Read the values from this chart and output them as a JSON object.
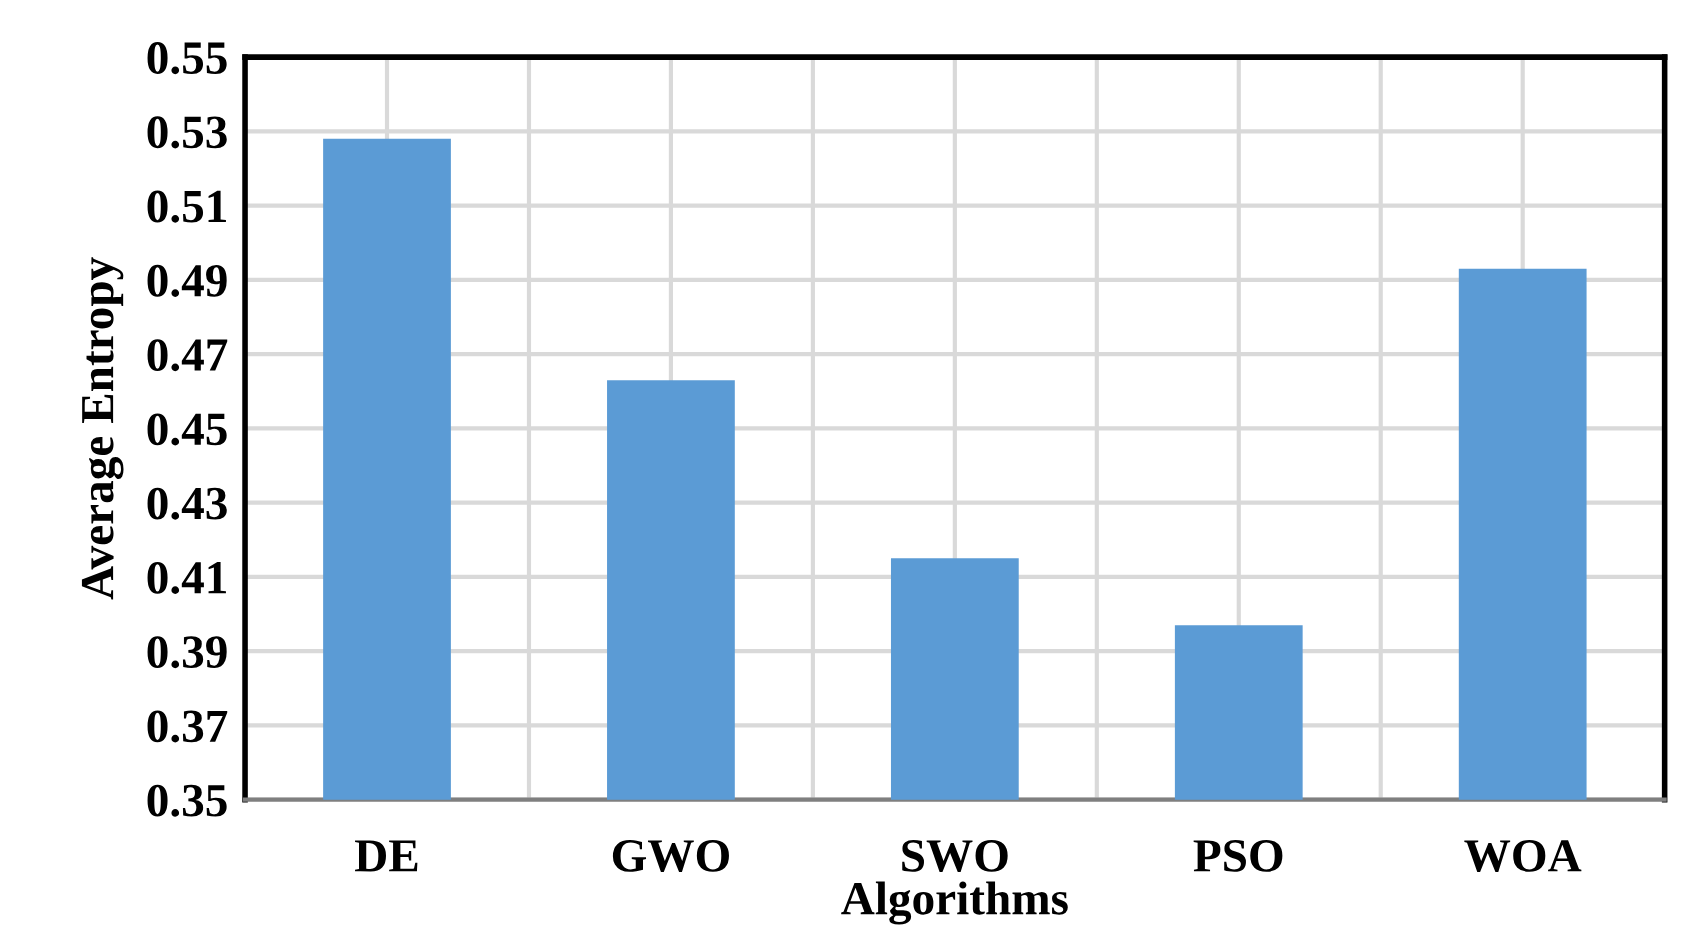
{
  "chart_data": {
    "type": "bar",
    "xlabel": "Algorithms",
    "ylabel": "Average Entropy",
    "categories": [
      "DE",
      "GWO",
      "SWO",
      "PSO",
      "WOA"
    ],
    "values": [
      0.528,
      0.463,
      0.415,
      0.397,
      0.493
    ],
    "color": "#5b9bd5",
    "ylim": [
      0.35,
      0.55
    ],
    "yticks": [
      0.35,
      0.37,
      0.39,
      0.41,
      0.43,
      0.45,
      0.47,
      0.49,
      0.51,
      0.53,
      0.55
    ],
    "grid": true
  }
}
